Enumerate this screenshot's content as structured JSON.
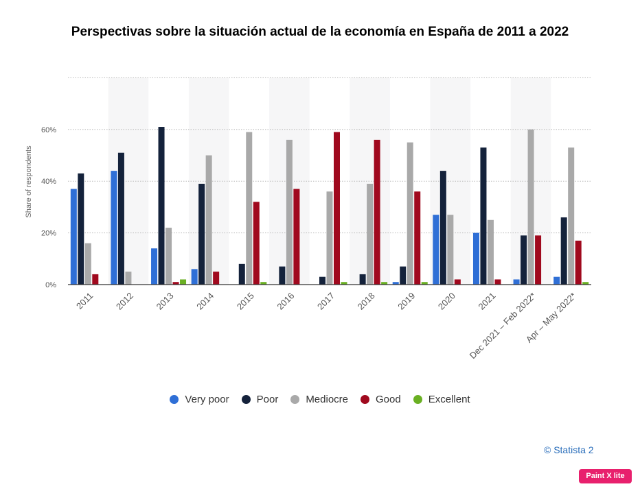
{
  "chart_data": {
    "type": "bar",
    "title": "Perspectivas sobre la situación actual de la economía en España de 2011 a 2022",
    "ylabel": "Share of respondents",
    "xlabel": "",
    "ylim": [
      0,
      80
    ],
    "yticks": [
      "0%",
      "20%",
      "40%",
      "60%"
    ],
    "grid": true,
    "legend_position": "bottom",
    "categories": [
      "2011",
      "2012",
      "2013",
      "2014",
      "2015",
      "2016",
      "2017",
      "2018",
      "2019",
      "2020",
      "2021",
      "Dec 2021 – Feb 2022*",
      "Apr – May 2022*"
    ],
    "series": [
      {
        "name": "Very poor",
        "color": "#2f6fd6",
        "values": [
          37,
          44,
          14,
          6,
          0,
          0,
          0,
          0,
          1,
          27,
          20,
          2,
          3
        ]
      },
      {
        "name": "Poor",
        "color": "#14223b",
        "values": [
          43,
          51,
          61,
          39,
          8,
          7,
          3,
          4,
          7,
          44,
          53,
          19,
          26
        ]
      },
      {
        "name": "Mediocre",
        "color": "#a9a9a9",
        "values": [
          16,
          5,
          22,
          50,
          59,
          56,
          36,
          39,
          55,
          27,
          25,
          60,
          53
        ]
      },
      {
        "name": "Good",
        "color": "#a0091e",
        "values": [
          4,
          0,
          1,
          5,
          32,
          37,
          59,
          56,
          36,
          2,
          2,
          19,
          17
        ]
      },
      {
        "name": "Excellent",
        "color": "#6ab023",
        "values": [
          0,
          0,
          2,
          0,
          1,
          0,
          1,
          1,
          1,
          0,
          0,
          0,
          1
        ]
      }
    ]
  },
  "credit": "© Statista 2",
  "watermark": "Paint X lite"
}
